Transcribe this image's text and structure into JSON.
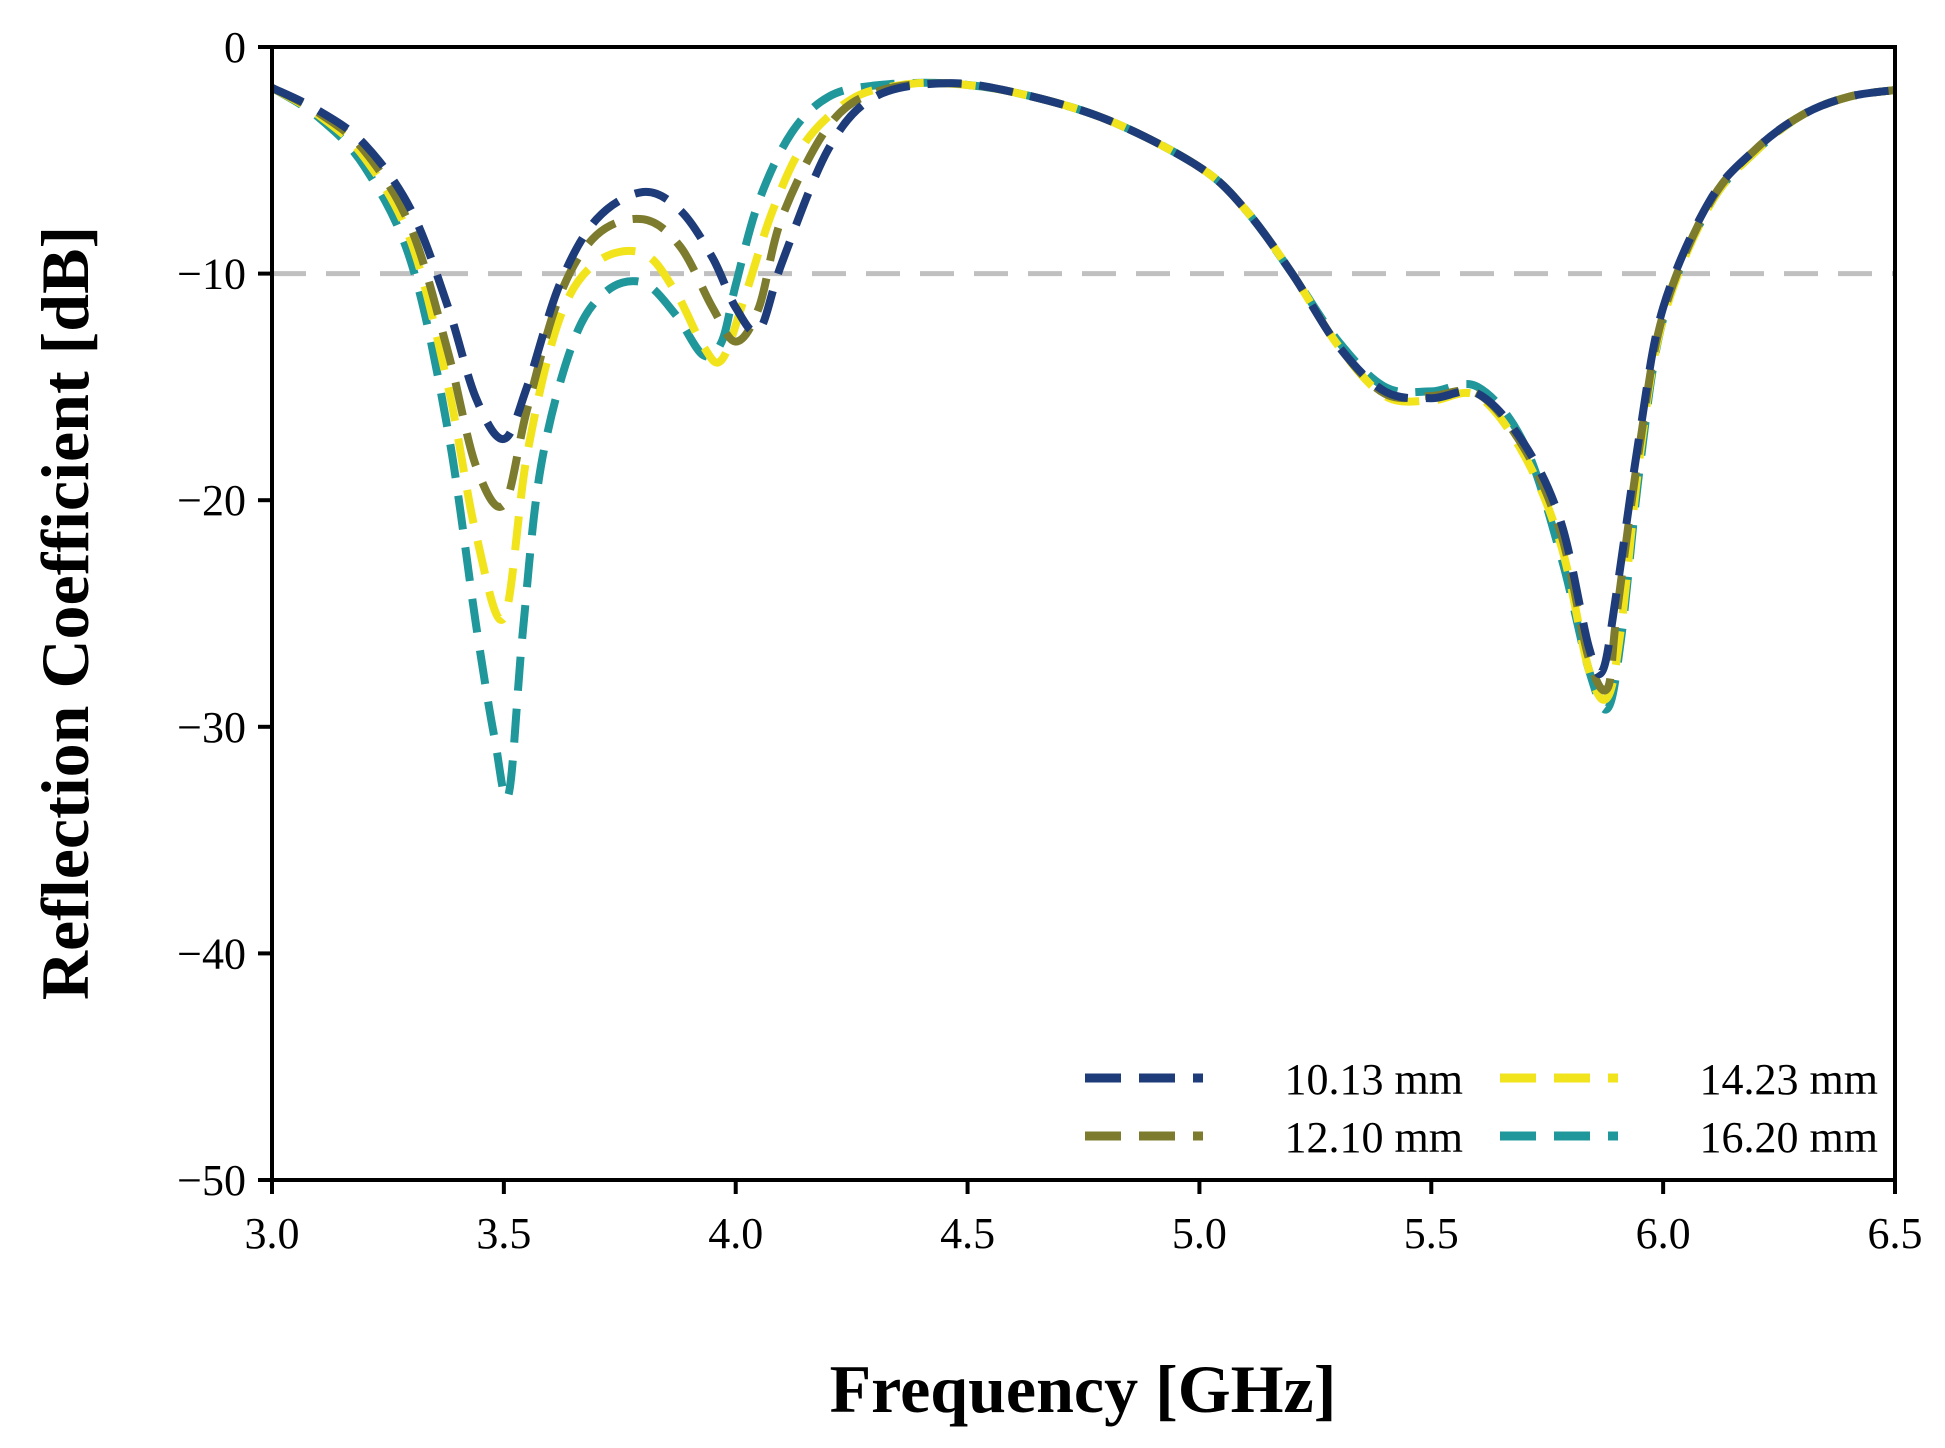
{
  "chart_data": {
    "type": "line",
    "title": "",
    "xlabel": "Frequency [GHz]",
    "ylabel": "Reflection Coefficient [dB]",
    "xlim": [
      3.0,
      6.5
    ],
    "ylim": [
      -50,
      0
    ],
    "xticks": [
      3.0,
      3.5,
      4.0,
      4.5,
      5.0,
      5.5,
      6.0,
      6.5
    ],
    "yticks": [
      0,
      -10,
      -20,
      -30,
      -40,
      -50
    ],
    "xtick_labels": [
      "3.0",
      "3.5",
      "4.0",
      "4.5",
      "5.0",
      "5.5",
      "6.0",
      "6.5"
    ],
    "ytick_labels": [
      "0",
      "−10",
      "−20",
      "−30",
      "−40",
      "−50"
    ],
    "reference_line": {
      "y": -10,
      "color": "#c0c0c0",
      "style": "dashed"
    },
    "legend_position": "bottom-right",
    "series": [
      {
        "name": "10.13 mm",
        "color": "#1f3c7a",
        "x": [
          3.0,
          3.1,
          3.2,
          3.3,
          3.38,
          3.44,
          3.5,
          3.55,
          3.62,
          3.7,
          3.8,
          3.88,
          3.95,
          4.0,
          4.05,
          4.1,
          4.2,
          4.3,
          4.45,
          4.6,
          4.8,
          5.0,
          5.1,
          5.2,
          5.3,
          5.4,
          5.5,
          5.6,
          5.7,
          5.78,
          5.84,
          5.87,
          5.9,
          5.95,
          6.0,
          6.1,
          6.2,
          6.3,
          6.4,
          6.5
        ],
        "y": [
          -1.8,
          -2.8,
          -4.3,
          -7.2,
          -11.5,
          -15.5,
          -17.3,
          -15.0,
          -10.5,
          -7.6,
          -6.4,
          -7.2,
          -9.3,
          -11.5,
          -12.5,
          -9.5,
          -4.5,
          -2.2,
          -1.6,
          -2.0,
          -3.2,
          -5.3,
          -7.2,
          -10.0,
          -13.2,
          -15.2,
          -15.5,
          -15.3,
          -17.5,
          -21.0,
          -26.5,
          -27.5,
          -24.0,
          -17.0,
          -11.5,
          -6.8,
          -4.5,
          -3.0,
          -2.2,
          -1.9
        ]
      },
      {
        "name": "12.10 mm",
        "color": "#7d7c2e",
        "x": [
          3.0,
          3.1,
          3.2,
          3.3,
          3.38,
          3.44,
          3.5,
          3.55,
          3.62,
          3.7,
          3.8,
          3.88,
          3.95,
          4.0,
          4.05,
          4.1,
          4.2,
          4.3,
          4.45,
          4.6,
          4.8,
          5.0,
          5.1,
          5.2,
          5.3,
          5.4,
          5.5,
          5.6,
          5.7,
          5.78,
          5.84,
          5.88,
          5.9,
          5.95,
          6.0,
          6.1,
          6.2,
          6.3,
          6.4,
          6.5
        ],
        "y": [
          -1.8,
          -2.9,
          -4.6,
          -8.0,
          -13.5,
          -18.5,
          -20.2,
          -16.0,
          -11.0,
          -8.3,
          -7.6,
          -8.8,
          -11.5,
          -13.0,
          -11.5,
          -7.5,
          -3.5,
          -2.0,
          -1.6,
          -2.0,
          -3.2,
          -5.3,
          -7.2,
          -10.0,
          -13.2,
          -15.3,
          -15.4,
          -15.3,
          -17.7,
          -21.5,
          -27.0,
          -28.3,
          -25.0,
          -17.5,
          -11.8,
          -6.9,
          -4.5,
          -3.0,
          -2.2,
          -1.9
        ]
      },
      {
        "name": "14.23 mm",
        "color": "#f2e41c",
        "x": [
          3.0,
          3.1,
          3.2,
          3.3,
          3.38,
          3.44,
          3.5,
          3.55,
          3.62,
          3.7,
          3.8,
          3.87,
          3.93,
          3.97,
          4.02,
          4.08,
          4.15,
          4.25,
          4.35,
          4.45,
          4.6,
          4.8,
          5.0,
          5.1,
          5.2,
          5.3,
          5.4,
          5.5,
          5.6,
          5.7,
          5.78,
          5.84,
          5.88,
          5.91,
          5.95,
          6.0,
          6.1,
          6.2,
          6.3,
          6.4,
          6.5
        ],
        "y": [
          -1.8,
          -3.0,
          -4.9,
          -8.6,
          -15.0,
          -21.5,
          -25.2,
          -18.0,
          -12.0,
          -9.5,
          -9.1,
          -10.8,
          -13.2,
          -13.8,
          -11.0,
          -7.2,
          -4.2,
          -2.3,
          -1.7,
          -1.6,
          -2.0,
          -3.2,
          -5.3,
          -7.2,
          -10.0,
          -13.2,
          -15.4,
          -15.6,
          -15.4,
          -18.0,
          -22.0,
          -27.5,
          -28.7,
          -25.5,
          -18.0,
          -12.0,
          -7.0,
          -4.6,
          -3.0,
          -2.2,
          -1.9
        ]
      },
      {
        "name": "16.20 mm",
        "color": "#20979b",
        "x": [
          3.0,
          3.1,
          3.2,
          3.3,
          3.38,
          3.44,
          3.48,
          3.51,
          3.54,
          3.58,
          3.65,
          3.72,
          3.8,
          3.87,
          3.93,
          3.97,
          4.0,
          4.05,
          4.12,
          4.2,
          4.3,
          4.45,
          4.6,
          4.8,
          5.0,
          5.1,
          5.2,
          5.3,
          5.4,
          5.5,
          5.6,
          5.7,
          5.78,
          5.84,
          5.88,
          5.91,
          5.95,
          6.0,
          6.1,
          6.2,
          6.3,
          6.4,
          6.5
        ],
        "y": [
          -1.8,
          -3.1,
          -5.3,
          -9.5,
          -17.0,
          -25.5,
          -30.5,
          -33.0,
          -26.0,
          -18.5,
          -13.0,
          -10.8,
          -10.4,
          -11.8,
          -13.6,
          -13.0,
          -10.5,
          -6.8,
          -3.8,
          -2.2,
          -1.7,
          -1.6,
          -2.0,
          -3.2,
          -5.3,
          -7.2,
          -10.0,
          -13.0,
          -15.0,
          -15.2,
          -15.0,
          -17.5,
          -22.5,
          -27.5,
          -29.2,
          -26.0,
          -18.5,
          -12.0,
          -7.0,
          -4.6,
          -3.0,
          -2.2,
          -1.9
        ]
      }
    ]
  }
}
